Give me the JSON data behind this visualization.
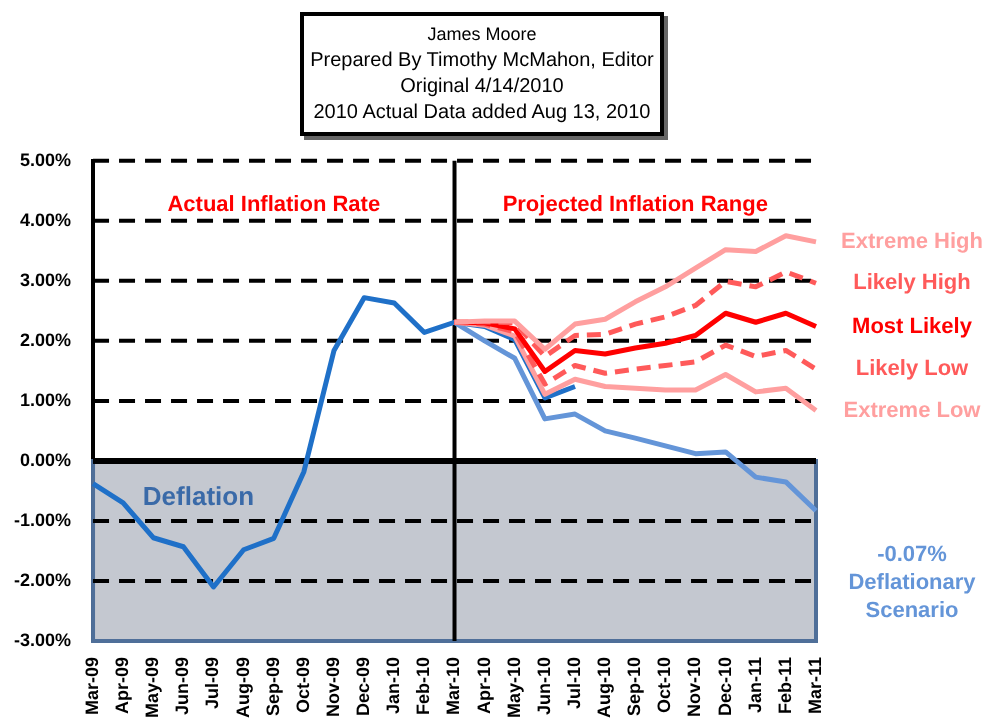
{
  "chart_data": {
    "type": "line",
    "subtitle": "James Moore",
    "categories": [
      "Mar-09",
      "Apr-09",
      "May-09",
      "Jun-09",
      "Jul-09",
      "Aug-09",
      "Sep-09",
      "Oct-09",
      "Nov-09",
      "Dec-09",
      "Jan-10",
      "Feb-10",
      "Mar-10",
      "Apr-10",
      "May-10",
      "Jun-10",
      "Jul-10",
      "Aug-10",
      "Sep-10",
      "Oct-10",
      "Nov-10",
      "Dec-10",
      "Jan-11",
      "Feb-11",
      "Mar-11"
    ],
    "series": [
      {
        "color": "#ff9f9f",
        "name": "Extreme High",
        "line_style": "solid",
        "values": [
          null,
          null,
          null,
          null,
          null,
          null,
          null,
          null,
          null,
          null,
          null,
          null,
          2.31,
          2.33,
          2.33,
          1.86,
          2.28,
          2.36,
          2.65,
          2.9,
          3.21,
          3.52,
          3.49,
          3.75,
          3.65
        ]
      },
      {
        "color": "#ff5a5a",
        "name": "Likely High",
        "line_style": "dashed",
        "values": [
          null,
          null,
          null,
          null,
          null,
          null,
          null,
          null,
          null,
          null,
          null,
          null,
          2.31,
          2.32,
          2.3,
          1.74,
          2.09,
          2.11,
          2.28,
          2.4,
          2.59,
          2.99,
          2.9,
          3.15,
          2.96
        ]
      },
      {
        "color": "#ff0000",
        "name": "Most Likely",
        "line_style": "solid",
        "values": [
          null,
          null,
          null,
          null,
          null,
          null,
          null,
          null,
          null,
          null,
          null,
          null,
          2.31,
          2.3,
          2.2,
          1.49,
          1.84,
          1.78,
          1.88,
          1.96,
          2.09,
          2.46,
          2.31,
          2.46,
          2.24
        ]
      },
      {
        "color": "#ff5a5a",
        "name": "Likely Low",
        "line_style": "dashed",
        "values": [
          null,
          null,
          null,
          null,
          null,
          null,
          null,
          null,
          null,
          null,
          null,
          null,
          2.31,
          2.28,
          2.15,
          1.28,
          1.59,
          1.46,
          1.53,
          1.59,
          1.65,
          1.93,
          1.74,
          1.84,
          1.53
        ]
      },
      {
        "color": "#ff9f9f",
        "name": "Extreme Low",
        "line_style": "solid",
        "values": [
          null,
          null,
          null,
          null,
          null,
          null,
          null,
          null,
          null,
          null,
          null,
          null,
          2.31,
          2.26,
          2.08,
          1.11,
          1.36,
          1.24,
          1.21,
          1.18,
          1.18,
          1.44,
          1.15,
          1.21,
          0.84
        ]
      },
      {
        "color": "#6495d8",
        "name": "-0.07% Deflationary Scenario",
        "line_style": "solid",
        "values": [
          null,
          null,
          null,
          null,
          null,
          null,
          null,
          null,
          null,
          null,
          null,
          null,
          2.31,
          2.0,
          1.71,
          0.7,
          0.78,
          0.5,
          0.38,
          0.25,
          0.12,
          0.15,
          -0.27,
          -0.35,
          -0.83
        ]
      },
      {
        "color": "#1f70c8",
        "line_style": "solid",
        "values": [
          -0.38,
          -0.7,
          -1.28,
          -1.43,
          -2.1,
          -1.48,
          -1.29,
          -0.18,
          1.84,
          2.72,
          2.63,
          2.14,
          2.31,
          2.24,
          2.02,
          1.05,
          1.24,
          null,
          null,
          null,
          null,
          null,
          null,
          null,
          null
        ]
      }
    ],
    "ylim": [
      -3,
      5
    ],
    "yticks": [
      {
        "value": -3,
        "label": "-3.00%"
      },
      {
        "value": -2,
        "label": "-2.00%"
      },
      {
        "value": -1,
        "label": "-1.00%"
      },
      {
        "value": 0,
        "label": "0.00%"
      },
      {
        "value": 1,
        "label": "1.00%"
      },
      {
        "value": 2,
        "label": "2.00%"
      },
      {
        "value": 3,
        "label": "3.00%"
      },
      {
        "value": 4,
        "label": "4.00%"
      },
      {
        "value": 5,
        "label": "5.00%"
      }
    ],
    "grid": "y",
    "marker": "none",
    "legend": false,
    "bands": [
      {
        "axis": "y",
        "from": -3,
        "to": 0,
        "label": "Deflation",
        "color": "#c4c8d0"
      }
    ],
    "ref_lines": [
      {
        "axis": "x",
        "value": "Mar-10",
        "color": "#000000"
      }
    ],
    "annotations": [
      "Prepared By Timothy McMahon, Editor",
      "Original  4/14/2010",
      "2010 Actual Data  added Aug 13, 2010",
      "Actual Inflation Rate",
      "Projected Inflation Range"
    ]
  }
}
